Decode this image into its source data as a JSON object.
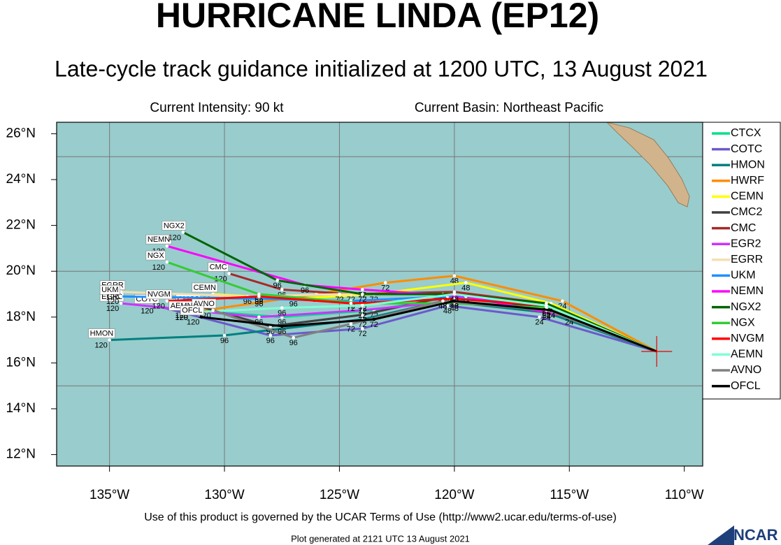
{
  "chart_data": {
    "type": "track-map",
    "title": "HURRICANE LINDA (EP12)",
    "subtitle": "Late-cycle track guidance initialized at 1200 UTC, 13 August 2021",
    "annotations": [
      "Current Intensity: 90 kt",
      "Current Basin: Northeast Pacific"
    ],
    "footer": "Use of this product is governed by the UCAR Terms of Use (http://www2.ucar.edu/terms-of-use)",
    "generated": "Plot generated at 2121 UTC   13 August 2021",
    "logo": "NCAR",
    "xlim": [
      -137.3,
      -109.2
    ],
    "ylim": [
      11.5,
      26.5
    ],
    "xticks": [
      {
        "value": -135,
        "label": "135°W"
      },
      {
        "value": -130,
        "label": "130°W"
      },
      {
        "value": -125,
        "label": "125°W"
      },
      {
        "value": -120,
        "label": "120°W"
      },
      {
        "value": -115,
        "label": "115°W"
      },
      {
        "value": -110,
        "label": "110°W"
      }
    ],
    "yticks": [
      {
        "value": 12,
        "label": "12°N"
      },
      {
        "value": 14,
        "label": "14°N"
      },
      {
        "value": 16,
        "label": "16°N"
      },
      {
        "value": 18,
        "label": "18°N"
      },
      {
        "value": 20,
        "label": "20°N"
      },
      {
        "value": 22,
        "label": "22°N"
      },
      {
        "value": 24,
        "label": "24°N"
      },
      {
        "value": 26,
        "label": "26°N"
      }
    ],
    "grid_x": [
      -135,
      -130,
      -125,
      -120,
      -115
    ],
    "grid_y": [
      15,
      20,
      25
    ],
    "initial": {
      "x": -111.2,
      "y": 16.5
    },
    "hours": [
      24,
      48,
      72,
      96,
      120
    ],
    "series": [
      {
        "name": "CTCX",
        "color": "#00e08a",
        "x": [
          -116,
          -120,
          -123.5,
          -127.5,
          -131.5
        ],
        "values": [
          18.3,
          18.9,
          18.3,
          18.0,
          18.3
        ]
      },
      {
        "name": "COTC",
        "color": "#6a5acd",
        "x": [
          -116.3,
          -120.3,
          -124,
          -128,
          -133
        ],
        "values": [
          18.0,
          18.5,
          17.5,
          17.2,
          18.5
        ]
      },
      {
        "name": "HMON",
        "color": "#008080",
        "x": [
          -116,
          -120.5,
          -124,
          -130,
          -135
        ],
        "values": [
          18.2,
          18.7,
          17.9,
          17.2,
          17.0
        ]
      },
      {
        "name": "HWRF",
        "color": "#ff8c00",
        "x": [
          -115.3,
          -120,
          -123,
          -126,
          -131.5
        ],
        "values": [
          18.7,
          19.8,
          19.5,
          19.0,
          18.2
        ]
      },
      {
        "name": "CEMN",
        "color": "#ffff00",
        "x": [
          -115.8,
          -119.5,
          -123.5,
          -127,
          -130.5
        ],
        "values": [
          18.6,
          19.5,
          19.0,
          18.8,
          19.0
        ]
      },
      {
        "name": "CMC2",
        "color": "#404040",
        "x": [
          -116,
          -120.3,
          -124,
          -128,
          -131.2
        ],
        "values": [
          18.4,
          18.9,
          18.1,
          17.6,
          18.5
        ]
      },
      {
        "name": "CMC",
        "color": "#a52a2a",
        "x": [
          -116,
          -120,
          -124.5,
          -127.5,
          -129.8
        ],
        "values": [
          18.6,
          19.1,
          19.0,
          19.2,
          19.9
        ]
      },
      {
        "name": "EGR2",
        "color": "#cc33ff",
        "x": [
          -115.8,
          -120,
          -124,
          -128.5,
          -134.5
        ],
        "values": [
          18.3,
          18.7,
          18.3,
          18.0,
          18.6
        ]
      },
      {
        "name": "EGRR",
        "color": "#f5deb3",
        "x": [
          -116,
          -120.5,
          -125,
          -129,
          -134.5
        ],
        "values": [
          18.5,
          19.0,
          19.0,
          18.9,
          19.1
        ]
      },
      {
        "name": "UKM",
        "color": "#1e90ff",
        "x": [
          -116,
          -120.3,
          -124.5,
          -128.5,
          -134.5
        ],
        "values": [
          18.5,
          18.9,
          18.7,
          18.8,
          18.9
        ]
      },
      {
        "name": "NEMN",
        "color": "#ff00ff",
        "x": [
          -115,
          -119.5,
          -124,
          -126.5,
          -132.5
        ],
        "values": [
          18.0,
          18.9,
          19.2,
          19.4,
          21.1
        ]
      },
      {
        "name": "NGX2",
        "color": "#006400",
        "x": [
          -116,
          -120,
          -124,
          -127.7,
          -131.8
        ],
        "values": [
          18.6,
          19.0,
          19.0,
          19.6,
          21.7
        ]
      },
      {
        "name": "NGX",
        "color": "#33cc33",
        "x": [
          -116,
          -120,
          -124,
          -128.5,
          -132.5
        ],
        "values": [
          18.4,
          18.6,
          18.6,
          19.0,
          20.4
        ]
      },
      {
        "name": "NVGM",
        "color": "#ff0000",
        "x": [
          -116,
          -120,
          -124.5,
          -128.5,
          -132.5
        ],
        "values": [
          18.5,
          18.8,
          18.6,
          18.9,
          18.7
        ]
      },
      {
        "name": "AEMN",
        "color": "#7fffd4",
        "x": [
          -116,
          -120,
          -124,
          -127.5,
          -131.5
        ],
        "values": [
          18.5,
          19.0,
          18.5,
          18.4,
          18.2
        ]
      },
      {
        "name": "AVNO",
        "color": "#808080",
        "x": [
          -116,
          -120.5,
          -124.5,
          -127,
          -130.5
        ],
        "values": [
          18.3,
          18.7,
          17.7,
          17.1,
          18.3
        ]
      },
      {
        "name": "OFCL",
        "color": "#000000",
        "x": [
          -115.8,
          -120,
          -123.5,
          -127.5,
          -131
        ],
        "values": [
          18.3,
          18.7,
          17.9,
          17.6,
          18.0
        ]
      }
    ]
  }
}
